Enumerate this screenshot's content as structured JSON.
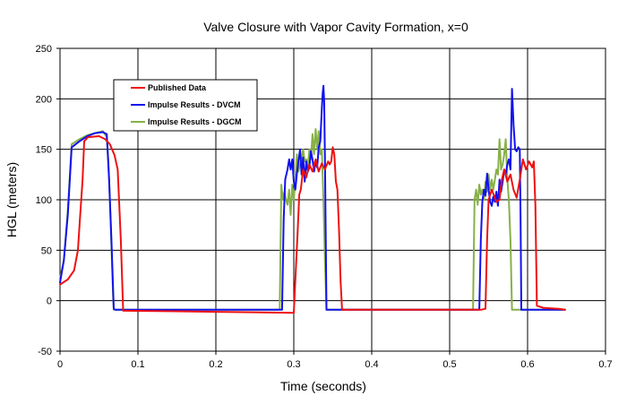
{
  "chart_data": {
    "type": "line",
    "title": "Valve Closure with Vapor Cavity Formation, x=0",
    "xlabel": "Time (seconds)",
    "ylabel": "HGL (meters)",
    "xlim": [
      0,
      0.7
    ],
    "ylim": [
      -50,
      250
    ],
    "xticks": [
      0,
      0.1,
      0.2,
      0.3,
      0.4,
      0.5,
      0.6,
      0.7
    ],
    "xtick_labels": [
      "0",
      "0.1",
      "0.2",
      "0.3",
      "0.4",
      "0.5",
      "0.6",
      "0.7"
    ],
    "yticks": [
      -50,
      0,
      50,
      100,
      150,
      200,
      250
    ],
    "ytick_labels": [
      "-50",
      "0",
      "50",
      "100",
      "150",
      "200",
      "250"
    ],
    "grid": true,
    "legend_position": "upper-left",
    "series": [
      {
        "name": "Published Data",
        "color": "#ee1111",
        "points": [
          [
            0,
            16
          ],
          [
            0.01,
            21
          ],
          [
            0.018,
            30
          ],
          [
            0.023,
            50
          ],
          [
            0.025,
            75
          ],
          [
            0.029,
            120
          ],
          [
            0.031,
            158
          ],
          [
            0.036,
            162
          ],
          [
            0.05,
            163
          ],
          [
            0.058,
            160
          ],
          [
            0.064,
            155
          ],
          [
            0.07,
            144
          ],
          [
            0.074,
            130
          ],
          [
            0.078,
            60
          ],
          [
            0.081,
            -10
          ],
          [
            0.085,
            -10
          ],
          [
            0.15,
            -10.5
          ],
          [
            0.2,
            -11
          ],
          [
            0.25,
            -11.5
          ],
          [
            0.3,
            -12
          ],
          [
            0.302,
            20
          ],
          [
            0.305,
            70
          ],
          [
            0.307,
            105
          ],
          [
            0.309,
            110
          ],
          [
            0.312,
            130
          ],
          [
            0.316,
            122
          ],
          [
            0.32,
            135
          ],
          [
            0.324,
            128
          ],
          [
            0.328,
            140
          ],
          [
            0.332,
            128
          ],
          [
            0.336,
            136
          ],
          [
            0.34,
            130
          ],
          [
            0.344,
            138
          ],
          [
            0.346,
            135
          ],
          [
            0.348,
            138
          ],
          [
            0.35,
            152
          ],
          [
            0.352,
            145
          ],
          [
            0.354,
            118
          ],
          [
            0.356,
            110
          ],
          [
            0.358,
            70
          ],
          [
            0.36,
            20
          ],
          [
            0.362,
            -9
          ],
          [
            0.4,
            -9
          ],
          [
            0.45,
            -9
          ],
          [
            0.5,
            -9
          ],
          [
            0.54,
            -9
          ],
          [
            0.546,
            -8
          ],
          [
            0.548,
            60
          ],
          [
            0.55,
            100
          ],
          [
            0.554,
            110
          ],
          [
            0.56,
            98
          ],
          [
            0.564,
            100
          ],
          [
            0.567,
            120
          ],
          [
            0.57,
            130
          ],
          [
            0.574,
            118
          ],
          [
            0.578,
            125
          ],
          [
            0.582,
            110
          ],
          [
            0.586,
            102
          ],
          [
            0.59,
            120
          ],
          [
            0.594,
            140
          ],
          [
            0.598,
            130
          ],
          [
            0.602,
            138
          ],
          [
            0.606,
            132
          ],
          [
            0.608,
            138
          ],
          [
            0.61,
            95
          ],
          [
            0.612,
            -5
          ],
          [
            0.62,
            -7
          ],
          [
            0.64,
            -8
          ],
          [
            0.648,
            -9
          ]
        ]
      },
      {
        "name": "Impulse Results - DVCM",
        "color": "#1111ee",
        "points": [
          [
            0,
            18
          ],
          [
            0.005,
            40
          ],
          [
            0.01,
            85
          ],
          [
            0.015,
            152
          ],
          [
            0.025,
            158
          ],
          [
            0.035,
            163
          ],
          [
            0.045,
            166
          ],
          [
            0.055,
            167
          ],
          [
            0.06,
            165
          ],
          [
            0.063,
            120
          ],
          [
            0.066,
            60
          ],
          [
            0.069,
            -8
          ],
          [
            0.071,
            -9
          ],
          [
            0.285,
            -9
          ],
          [
            0.287,
            80
          ],
          [
            0.289,
            120
          ],
          [
            0.292,
            130
          ],
          [
            0.294,
            140
          ],
          [
            0.296,
            130
          ],
          [
            0.298,
            140
          ],
          [
            0.3,
            118
          ],
          [
            0.302,
            110
          ],
          [
            0.304,
            126
          ],
          [
            0.306,
            138
          ],
          [
            0.308,
            150
          ],
          [
            0.31,
            125
          ],
          [
            0.312,
            142
          ],
          [
            0.314,
            118
          ],
          [
            0.316,
            138
          ],
          [
            0.318,
            128
          ],
          [
            0.32,
            132
          ],
          [
            0.322,
            148
          ],
          [
            0.324,
            140
          ],
          [
            0.326,
            128
          ],
          [
            0.328,
            138
          ],
          [
            0.33,
            132
          ],
          [
            0.332,
            152
          ],
          [
            0.334,
            158
          ],
          [
            0.336,
            190
          ],
          [
            0.337,
            205
          ],
          [
            0.338,
            213
          ],
          [
            0.339,
            198
          ],
          [
            0.34,
            140
          ],
          [
            0.341,
            60
          ],
          [
            0.342,
            -9
          ],
          [
            0.345,
            -9
          ],
          [
            0.4,
            -9
          ],
          [
            0.45,
            -9
          ],
          [
            0.5,
            -9
          ],
          [
            0.53,
            -9
          ],
          [
            0.538,
            -9
          ],
          [
            0.54,
            60
          ],
          [
            0.542,
            98
          ],
          [
            0.544,
            110
          ],
          [
            0.546,
            104
          ],
          [
            0.548,
            126
          ],
          [
            0.55,
            110
          ],
          [
            0.552,
            98
          ],
          [
            0.554,
            94
          ],
          [
            0.556,
            103
          ],
          [
            0.558,
            98
          ],
          [
            0.56,
            108
          ],
          [
            0.562,
            94
          ],
          [
            0.564,
            120
          ],
          [
            0.566,
            108
          ],
          [
            0.568,
            118
          ],
          [
            0.57,
            130
          ],
          [
            0.572,
            125
          ],
          [
            0.574,
            135
          ],
          [
            0.576,
            140
          ],
          [
            0.578,
            130
          ],
          [
            0.58,
            210
          ],
          [
            0.582,
            175
          ],
          [
            0.584,
            150
          ],
          [
            0.586,
            148
          ],
          [
            0.588,
            152
          ],
          [
            0.59,
            150
          ],
          [
            0.591,
            80
          ],
          [
            0.592,
            -9
          ],
          [
            0.6,
            -9
          ],
          [
            0.64,
            -9
          ],
          [
            0.648,
            -9
          ]
        ]
      },
      {
        "name": "Impulse Results - DGCM",
        "color": "#88b048",
        "points": [
          [
            0,
            22
          ],
          [
            0.005,
            40
          ],
          [
            0.01,
            90
          ],
          [
            0.015,
            155
          ],
          [
            0.025,
            160
          ],
          [
            0.035,
            164
          ],
          [
            0.045,
            166
          ],
          [
            0.055,
            168
          ],
          [
            0.06,
            162
          ],
          [
            0.062,
            140
          ],
          [
            0.064,
            100
          ],
          [
            0.066,
            55
          ],
          [
            0.068,
            5
          ],
          [
            0.069,
            -9
          ],
          [
            0.07,
            -9
          ],
          [
            0.28,
            -9
          ],
          [
            0.282,
            -8
          ],
          [
            0.284,
            115
          ],
          [
            0.286,
            100
          ],
          [
            0.288,
            108
          ],
          [
            0.29,
            100
          ],
          [
            0.292,
            95
          ],
          [
            0.294,
            110
          ],
          [
            0.296,
            85
          ],
          [
            0.298,
            115
          ],
          [
            0.3,
            100
          ],
          [
            0.302,
            120
          ],
          [
            0.304,
            145
          ],
          [
            0.306,
            128
          ],
          [
            0.308,
            135
          ],
          [
            0.31,
            140
          ],
          [
            0.312,
            150
          ],
          [
            0.314,
            138
          ],
          [
            0.316,
            140
          ],
          [
            0.318,
            134
          ],
          [
            0.32,
            150
          ],
          [
            0.322,
            140
          ],
          [
            0.324,
            165
          ],
          [
            0.326,
            145
          ],
          [
            0.328,
            170
          ],
          [
            0.33,
            150
          ],
          [
            0.332,
            168
          ],
          [
            0.334,
            145
          ],
          [
            0.336,
            150
          ],
          [
            0.338,
            100
          ],
          [
            0.34,
            40
          ],
          [
            0.342,
            -9
          ],
          [
            0.35,
            -9
          ],
          [
            0.4,
            -9
          ],
          [
            0.45,
            -9
          ],
          [
            0.5,
            -9
          ],
          [
            0.53,
            -9
          ],
          [
            0.532,
            100
          ],
          [
            0.534,
            110
          ],
          [
            0.536,
            95
          ],
          [
            0.538,
            115
          ],
          [
            0.54,
            105
          ],
          [
            0.542,
            110
          ],
          [
            0.544,
            100
          ],
          [
            0.546,
            118
          ],
          [
            0.548,
            108
          ],
          [
            0.55,
            125
          ],
          [
            0.552,
            110
          ],
          [
            0.554,
            120
          ],
          [
            0.556,
            110
          ],
          [
            0.558,
            120
          ],
          [
            0.56,
            130
          ],
          [
            0.562,
            125
          ],
          [
            0.564,
            160
          ],
          [
            0.566,
            130
          ],
          [
            0.568,
            135
          ],
          [
            0.57,
            145
          ],
          [
            0.572,
            160
          ],
          [
            0.574,
            120
          ],
          [
            0.576,
            100
          ],
          [
            0.578,
            60
          ],
          [
            0.58,
            -9
          ],
          [
            0.6,
            -9
          ],
          [
            0.64,
            -9
          ],
          [
            0.648,
            -9
          ]
        ]
      }
    ]
  }
}
